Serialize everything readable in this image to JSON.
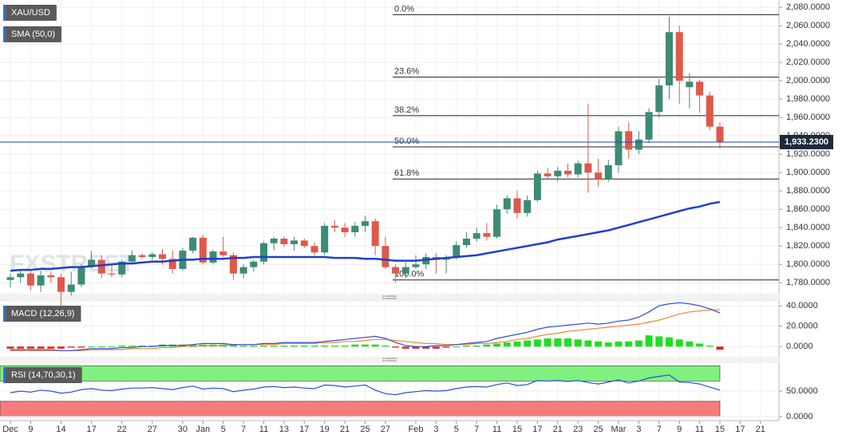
{
  "chart_data": [
    {
      "type": "candlestick",
      "title": "XAU/USD",
      "watermark": "FXSTREET",
      "categories": [
        "Dec",
        null,
        "9",
        null,
        null,
        "14",
        null,
        null,
        "17",
        null,
        null,
        "22",
        null,
        null,
        "27",
        null,
        null,
        "30",
        null,
        "Jan",
        null,
        "5",
        null,
        "7",
        null,
        "11",
        null,
        "13",
        null,
        "17",
        null,
        "19",
        null,
        "21",
        null,
        "25",
        null,
        "27",
        null,
        null,
        "Feb",
        null,
        "3",
        null,
        "5",
        null,
        "7",
        null,
        "11",
        null,
        "15",
        null,
        "17",
        null,
        "21",
        null,
        "23",
        null,
        "25",
        null,
        "Mar",
        null,
        "3",
        null,
        "7",
        null,
        "9",
        null,
        "11",
        null,
        "15",
        null,
        "17",
        null,
        "21"
      ],
      "open": [
        1783,
        1786,
        1790,
        1777,
        1788,
        1786,
        1770,
        1778,
        1798,
        1805,
        1790,
        1789,
        1803,
        1810,
        1808,
        1811,
        1806,
        1795,
        1815,
        1829,
        1802,
        1814,
        1810,
        1790,
        1797,
        1803,
        1823,
        1828,
        1822,
        1826,
        1820,
        1813,
        1842,
        1840,
        1835,
        1842,
        1847,
        1820,
        1797,
        1790,
        1797,
        1800,
        1808,
        1805,
        1807,
        1821,
        1828,
        1834,
        1830,
        1860,
        1872,
        1856,
        1870,
        1899,
        1896,
        1902,
        1898,
        1910,
        1900,
        1893,
        1908,
        1945,
        1925,
        1936,
        1966,
        1995,
        2053,
        1993,
        1999,
        1984,
        1950,
        null,
        null,
        null,
        null
      ],
      "high": [
        1790,
        1795,
        1793,
        1793,
        1792,
        1790,
        1792,
        1800,
        1815,
        1810,
        1800,
        1805,
        1815,
        1812,
        1813,
        1817,
        1815,
        1818,
        1830,
        1832,
        1816,
        1830,
        1813,
        1800,
        1805,
        1825,
        1830,
        1830,
        1830,
        1828,
        1824,
        1845,
        1848,
        1845,
        1846,
        1853,
        1850,
        1830,
        1800,
        1802,
        1810,
        1812,
        1812,
        1810,
        1825,
        1835,
        1840,
        1845,
        1865,
        1875,
        1880,
        1875,
        1902,
        1905,
        1906,
        1910,
        1913,
        1975,
        1915,
        1914,
        1950,
        1955,
        1945,
        1970,
        2002,
        2070,
        2060,
        2008,
        2001,
        1988,
        1955,
        null,
        null,
        null,
        null
      ],
      "low": [
        1775,
        1780,
        1772,
        1770,
        1780,
        1753,
        1766,
        1775,
        1796,
        1785,
        1786,
        1786,
        1800,
        1806,
        1805,
        1800,
        1790,
        1793,
        1812,
        1800,
        1800,
        1808,
        1783,
        1785,
        1792,
        1800,
        1815,
        1819,
        1815,
        1818,
        1810,
        1810,
        1835,
        1830,
        1830,
        1835,
        1810,
        1795,
        1780,
        1785,
        1795,
        1795,
        1790,
        1790,
        1805,
        1818,
        1825,
        1826,
        1828,
        1855,
        1850,
        1852,
        1868,
        1893,
        1890,
        1895,
        1895,
        1878,
        1885,
        1890,
        1900,
        1915,
        1920,
        1932,
        1960,
        1980,
        1975,
        1970,
        1965,
        1946,
        1926,
        null,
        null,
        null,
        null
      ],
      "close": [
        1786,
        1790,
        1777,
        1788,
        1786,
        1770,
        1778,
        1798,
        1805,
        1790,
        1789,
        1803,
        1810,
        1808,
        1811,
        1806,
        1795,
        1815,
        1829,
        1802,
        1814,
        1810,
        1790,
        1797,
        1803,
        1823,
        1828,
        1822,
        1826,
        1820,
        1813,
        1842,
        1840,
        1835,
        1842,
        1847,
        1820,
        1797,
        1790,
        1797,
        1800,
        1808,
        1805,
        1807,
        1821,
        1828,
        1834,
        1830,
        1860,
        1872,
        1856,
        1870,
        1899,
        1896,
        1902,
        1898,
        1910,
        1900,
        1893,
        1908,
        1945,
        1925,
        1936,
        1966,
        1995,
        2053,
        2000,
        1999,
        1984,
        1950,
        1933.23,
        null,
        null,
        null,
        null
      ],
      "up_color": "#3d8b74",
      "down_color": "#e0584a",
      "sma": {
        "name": "SMA (50,0)",
        "color": "#1f3fcf",
        "values": [
          1793,
          1794,
          1794,
          1795,
          1795,
          1796,
          1797,
          1797,
          1798,
          1799,
          1800,
          1801,
          1801,
          1802,
          1803,
          1803,
          1804,
          1805,
          1805,
          1806,
          1806,
          1806,
          1807,
          1807,
          1808,
          1808,
          1808,
          1808,
          1808,
          1808,
          1808,
          1808,
          1807,
          1807,
          1807,
          1806,
          1806,
          1805,
          1804,
          1804,
          1804,
          1805,
          1806,
          1807,
          1808,
          1809,
          1810,
          1812,
          1814,
          1816,
          1818,
          1820,
          1822,
          1824,
          1827,
          1829,
          1831,
          1833,
          1835,
          1837,
          1840,
          1843,
          1846,
          1849,
          1852,
          1855,
          1858,
          1861,
          1863,
          1866,
          1868,
          null,
          null,
          null,
          null
        ]
      },
      "fib": [
        {
          "label": "0.0%",
          "value": 2072
        },
        {
          "label": "23.6%",
          "value": 2004
        },
        {
          "label": "38.2%",
          "value": 1962
        },
        {
          "label": "50.0%",
          "value": 1928
        },
        {
          "label": "61.8%",
          "value": 1893
        },
        {
          "label": "100.0%",
          "value": 1783
        }
      ],
      "last_price": {
        "value": 1933.23,
        "label": "1,933.2300",
        "color": "#1f3fcf"
      },
      "ylim": [
        1768,
        2088
      ],
      "yticks": [
        {
          "value": 1780,
          "label": "1,780.0000"
        },
        {
          "value": 1800,
          "label": "1,800.0000"
        },
        {
          "value": 1820,
          "label": "1,820.0000"
        },
        {
          "value": 1840,
          "label": "1,840.0000"
        },
        {
          "value": 1860,
          "label": "1,860.0000"
        },
        {
          "value": 1880,
          "label": "1,880.0000"
        },
        {
          "value": 1900,
          "label": "1,900.0000"
        },
        {
          "value": 1920,
          "label": "1,920.0000"
        },
        {
          "value": 1940,
          "label": "1,940.0000"
        },
        {
          "value": 1960,
          "label": "1,960.0000"
        },
        {
          "value": 1980,
          "label": "1,980.0000"
        },
        {
          "value": 2000,
          "label": "2,000.0000"
        },
        {
          "value": 2020,
          "label": "2,020.0000"
        },
        {
          "value": 2040,
          "label": "2,040.0000"
        },
        {
          "value": 2060,
          "label": "2,060.0000"
        },
        {
          "value": 2080,
          "label": "2,080.0000"
        }
      ],
      "grid": true
    },
    {
      "type": "macd",
      "title": "MACD (12,26,9)",
      "macd": {
        "color": "#2f4fe0",
        "values": [
          -3,
          -3,
          -3,
          -3,
          -3,
          -4,
          -4,
          -3,
          -2,
          -2,
          -2,
          -1,
          -1,
          0,
          0,
          1,
          1,
          1,
          2,
          3,
          3,
          3,
          2,
          2,
          2,
          3,
          3,
          4,
          4,
          4,
          4,
          5,
          6,
          7,
          8,
          9,
          10,
          8,
          4,
          1,
          0,
          0,
          1,
          1,
          2,
          3,
          4,
          5,
          8,
          10,
          12,
          14,
          17,
          19,
          20,
          21,
          22,
          23,
          22,
          23,
          25,
          26,
          29,
          34,
          40,
          42,
          43,
          42,
          40,
          37,
          33,
          null,
          null,
          null,
          null
        ]
      },
      "signal": {
        "color": "#f08a2e",
        "values": [
          -4,
          -4,
          -4,
          -4,
          -4,
          -4,
          -4,
          -4,
          -3,
          -3,
          -3,
          -3,
          -2,
          -2,
          -2,
          -1,
          -1,
          0,
          0,
          1,
          1,
          1,
          2,
          2,
          2,
          2,
          2,
          3,
          3,
          3,
          3,
          4,
          4,
          5,
          5,
          6,
          7,
          7,
          6,
          5,
          4,
          3,
          3,
          2,
          2,
          2,
          3,
          3,
          4,
          5,
          7,
          8,
          10,
          12,
          13,
          15,
          16,
          17,
          18,
          19,
          20,
          21,
          22,
          24,
          26,
          29,
          32,
          34,
          35,
          36,
          36,
          null,
          null,
          null,
          null
        ]
      },
      "histogram": {
        "up_color": "#22dd22",
        "down_color": "#e8201e",
        "values": [
          -2,
          -2,
          -2,
          -2,
          -2,
          -2,
          -1,
          -1,
          0,
          0,
          0,
          1,
          1,
          1,
          1,
          2,
          2,
          2,
          2,
          2,
          2,
          2,
          2,
          1,
          1,
          1,
          1,
          1,
          1,
          1,
          1,
          1,
          1,
          1,
          2,
          2,
          2,
          1,
          -1,
          -2,
          -2,
          -2,
          -2,
          -1,
          0,
          1,
          1,
          2,
          3,
          4,
          5,
          6,
          7,
          8,
          8,
          8,
          7,
          6,
          5,
          4,
          5,
          5,
          6,
          11,
          10,
          9,
          7,
          5,
          3,
          1,
          -3,
          null,
          null,
          null,
          null
        ]
      },
      "ylim": [
        -10,
        44
      ],
      "yticks": [
        {
          "value": 0,
          "label": "0.0000"
        },
        {
          "value": 20,
          "label": "20.0000"
        },
        {
          "value": 40,
          "label": "40.0000"
        }
      ]
    },
    {
      "type": "rsi",
      "title": "RSI (14,70,30,1)",
      "color": "#2b4fd6",
      "values": [
        47,
        50,
        48,
        52,
        50,
        46,
        48,
        53,
        55,
        52,
        51,
        54,
        56,
        56,
        57,
        55,
        53,
        57,
        60,
        54,
        56,
        55,
        49,
        52,
        54,
        58,
        59,
        57,
        58,
        56,
        55,
        62,
        61,
        58,
        60,
        62,
        52,
        45,
        43,
        47,
        49,
        51,
        50,
        51,
        55,
        58,
        59,
        58,
        63,
        66,
        61,
        63,
        71,
        70,
        71,
        69,
        71,
        67,
        64,
        68,
        72,
        66,
        70,
        76,
        79,
        82,
        68,
        67,
        64,
        58,
        52,
        null,
        null,
        null,
        null
      ],
      "upper_band": {
        "from": 70,
        "to": 100,
        "color": "#80f080"
      },
      "lower_band": {
        "from": 0,
        "to": 30,
        "color": "#f47c7c"
      },
      "ylim": [
        -8,
        105
      ],
      "yticks": [
        {
          "value": 0,
          "label": "0.0000"
        },
        {
          "value": 50,
          "label": "50.0000"
        }
      ]
    }
  ]
}
